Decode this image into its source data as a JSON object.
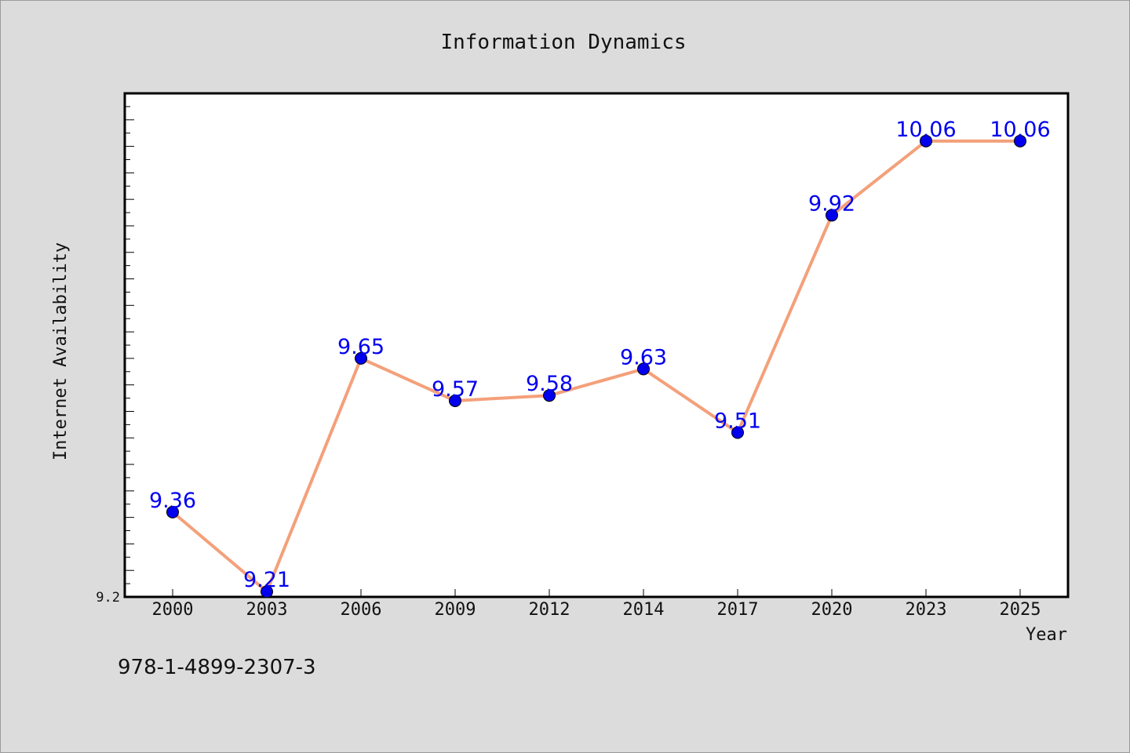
{
  "chart_data": {
    "type": "line",
    "title": "Information Dynamics",
    "xlabel": "Year",
    "ylabel": "Internet Availability",
    "categories": [
      "2000",
      "2003",
      "2006",
      "2009",
      "2012",
      "2014",
      "2017",
      "2020",
      "2023",
      "2025"
    ],
    "series": [
      {
        "values": [
          9.36,
          9.21,
          9.65,
          9.57,
          9.58,
          9.63,
          9.51,
          9.92,
          10.06,
          10.06
        ]
      }
    ],
    "y_tick_labels": [
      "9.2"
    ],
    "ylim": [
      9.2,
      10.15
    ],
    "grid": false,
    "line_color": "#f4a07a",
    "marker_color": "#0000ee",
    "label_color": "#0000ee"
  },
  "footer": {
    "code": "978-1-4899-2307-3"
  }
}
